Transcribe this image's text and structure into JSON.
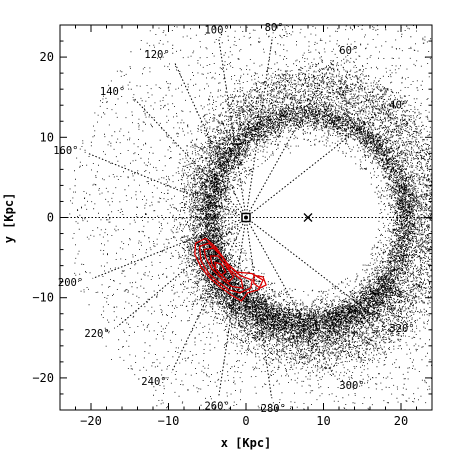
{
  "chart_data": {
    "type": "scatter",
    "xlabel": "x [Kpc]",
    "ylabel": "y [Kpc]",
    "xlim": [
      -24,
      24
    ],
    "ylim": [
      -24,
      24
    ],
    "xticks": [
      -20,
      -10,
      0,
      10,
      20
    ],
    "yticks": [
      -20,
      -10,
      0,
      10,
      20
    ],
    "xtick_labels": [
      "−20",
      "−10",
      "0",
      "10",
      "20"
    ],
    "ytick_labels": [
      "−20",
      "−10",
      "0",
      "10",
      "20"
    ],
    "grid": false,
    "observer_center": [
      0,
      0
    ],
    "cross_marker": [
      8,
      0
    ],
    "sightline_angles": [
      {
        "label": "40°",
        "angle": 40,
        "end": [
          17.5,
          13.3
        ]
      },
      {
        "label": "60°",
        "angle": 60,
        "end": [
          11.4,
          19.8
        ]
      },
      {
        "label": "80°",
        "angle": 80,
        "end": [
          3.4,
          22.5
        ]
      },
      {
        "label": "100°",
        "angle": 100,
        "end": [
          -3.5,
          22.2
        ]
      },
      {
        "label": "120°",
        "angle": 120,
        "end": [
          -9.2,
          19.3
        ]
      },
      {
        "label": "140°",
        "angle": 140,
        "end": [
          -14.6,
          15.0
        ]
      },
      {
        "label": "160°",
        "angle": 160,
        "end": [
          -20.4,
          8.0
        ]
      },
      {
        "label": "200°",
        "angle": 200,
        "end": [
          -19.8,
          -7.6
        ]
      },
      {
        "label": "220°",
        "angle": 220,
        "end": [
          -16.6,
          -13.6
        ]
      },
      {
        "label": "240°",
        "angle": 240,
        "end": [
          -9.6,
          -19.3
        ]
      },
      {
        "label": "260°",
        "angle": 260,
        "end": [
          -3.5,
          -22.2
        ]
      },
      {
        "label": "280°",
        "angle": 280,
        "end": [
          3.3,
          -22.5
        ]
      },
      {
        "label": "300°",
        "angle": 300,
        "end": [
          11.4,
          -19.8
        ]
      },
      {
        "label": "320°",
        "angle": 320,
        "end": [
          17.5,
          -13.0
        ]
      }
    ],
    "series": [
      {
        "color": "#000000",
        "kind": "scatter-density"
      },
      {
        "color": "#e00000",
        "kind": "contour"
      }
    ]
  }
}
